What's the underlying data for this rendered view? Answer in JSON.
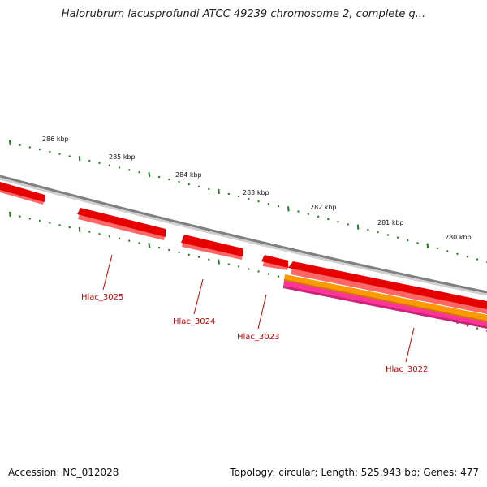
{
  "title": "Halorubrum lacusprofundi ATCC 49239 chromosome 2, complete g...",
  "footer": {
    "accession": "Accession: NC_012028",
    "summary": "Topology: circular; Length: 525,943 bp; Genes: 477"
  },
  "kbp_ticks": [
    "286 kbp",
    "285 kbp",
    "284 kbp",
    "283 kbp",
    "282 kbp",
    "281 kbp",
    "280 kbp"
  ],
  "genes": [
    {
      "label": "Hlac_3025",
      "color": "#e60000"
    },
    {
      "label": "Hlac_3024",
      "color": "#e60000"
    },
    {
      "label": "Hlac_3023",
      "color": "#e60000"
    },
    {
      "label": "Hlac_3022",
      "color": "#e60000"
    }
  ],
  "colors": {
    "backbone": "#808080",
    "gene_forward": "#e60000",
    "gene_highlight": "#ff6666",
    "cds_orange": "#ff9900",
    "cds_pink": "#ff3399",
    "tick": "#1a7a1a",
    "label": "#cc0000"
  }
}
